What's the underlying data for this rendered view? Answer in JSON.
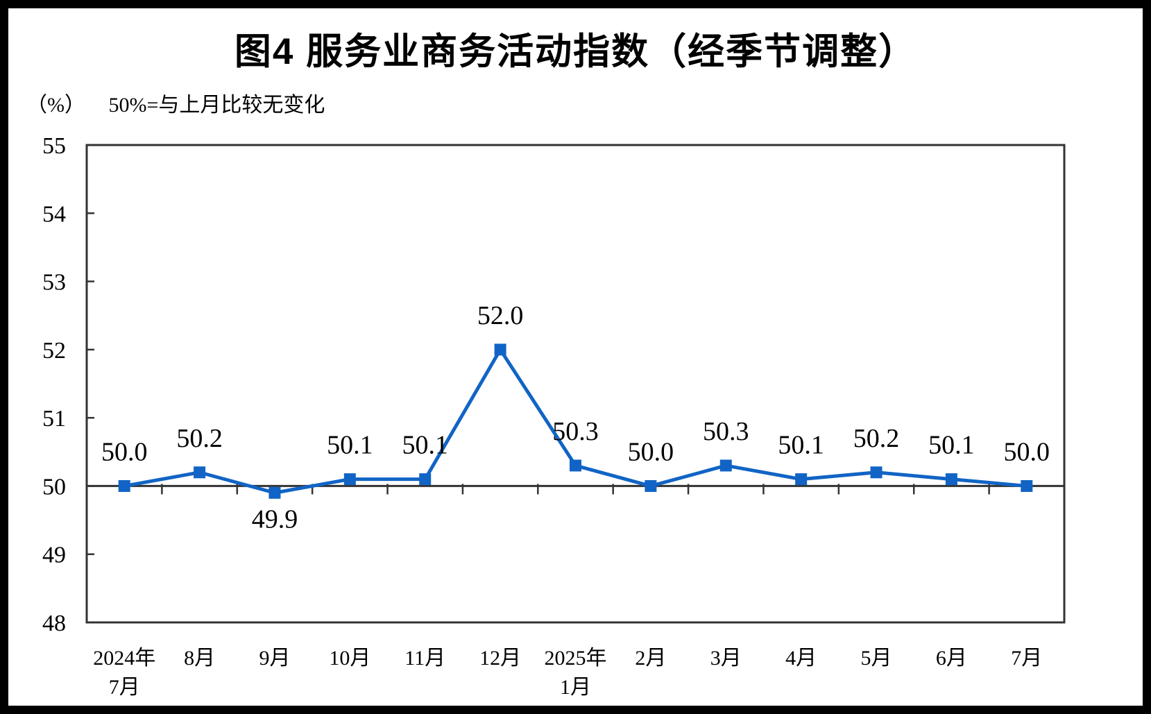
{
  "chart_data": {
    "type": "line",
    "title": "图4 服务业商务活动指数（经季节调整）",
    "unit": "（%）",
    "note": "50%=与上月比较无变化",
    "categories": [
      [
        "2024年",
        "7月"
      ],
      "8月",
      "9月",
      "10月",
      "11月",
      "12月",
      [
        "2025年",
        "1月"
      ],
      "2月",
      "3月",
      "4月",
      "5月",
      "6月",
      "7月"
    ],
    "values": [
      50.0,
      50.2,
      49.9,
      50.1,
      50.1,
      52.0,
      50.3,
      50.0,
      50.3,
      50.1,
      50.2,
      50.1,
      50.0
    ],
    "label_positions": [
      "above",
      "above",
      "below",
      "above",
      "above",
      "above",
      "above",
      "above",
      "above",
      "above",
      "above",
      "above",
      "above"
    ],
    "ylim": [
      48,
      55
    ],
    "ytick_step": 1,
    "yticks": [
      "48",
      "49",
      "50",
      "51",
      "52",
      "53",
      "54",
      "55"
    ],
    "reference_line": 50,
    "grid": false,
    "legend": "none",
    "line_color": "#1164C5",
    "marker": "square",
    "axis_color": "#333333",
    "label_color": "#000000"
  }
}
